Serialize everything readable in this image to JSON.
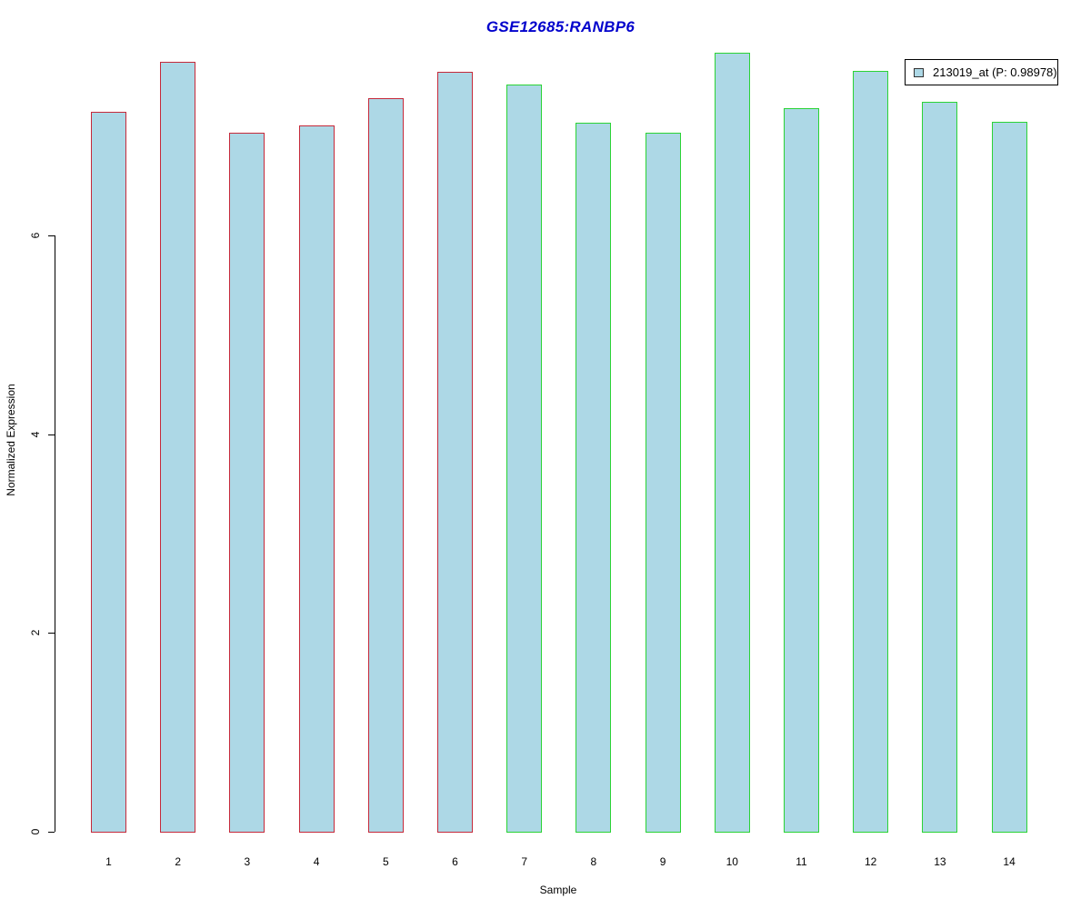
{
  "colors": {
    "background": "#FFFFFF",
    "title": "#0000CC",
    "axis": "#000000",
    "bar_fill": "#ADD8E6",
    "group_red_border": "#C5293A",
    "group_green_border": "#2BD335",
    "legend_swatch_fill": "#ADD8E6"
  },
  "chart_data": {
    "type": "bar",
    "title": "GSE12685:RANBP6",
    "xlabel": "Sample",
    "ylabel": "Normalized Expression",
    "categories": [
      "1",
      "2",
      "3",
      "4",
      "5",
      "6",
      "7",
      "8",
      "9",
      "10",
      "11",
      "12",
      "13",
      "14"
    ],
    "values": [
      7.25,
      7.75,
      7.04,
      7.11,
      7.38,
      7.65,
      7.52,
      7.14,
      7.04,
      7.84,
      7.28,
      7.66,
      7.35,
      7.15
    ],
    "bar_groups": [
      "red",
      "red",
      "red",
      "red",
      "red",
      "red",
      "green",
      "green",
      "green",
      "green",
      "green",
      "green",
      "green",
      "green"
    ],
    "yticks": [
      0,
      2,
      4,
      6
    ],
    "ylim": [
      0,
      7.9
    ],
    "grid": false,
    "legend": {
      "position": "top-right",
      "entries": [
        {
          "label": "213019_at (P: 0.98978)",
          "swatch_fill": "#ADD8E6"
        }
      ]
    }
  }
}
